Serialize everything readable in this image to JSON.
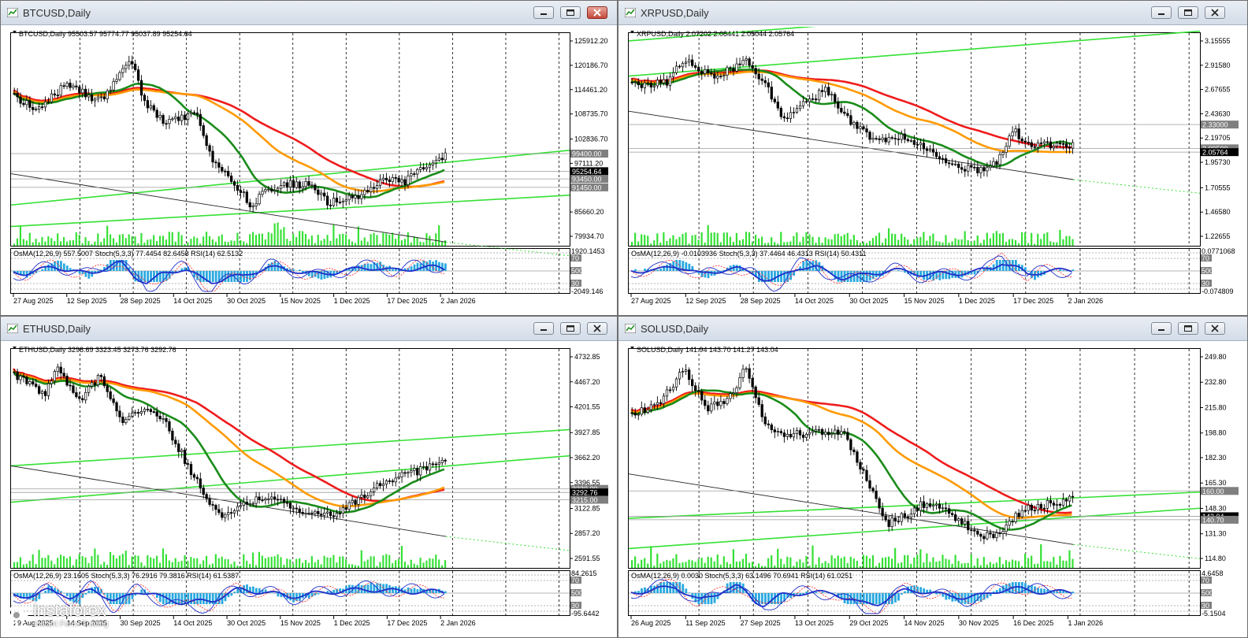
{
  "windows": [
    {
      "id": "btc",
      "title": "BTCUSD,Daily",
      "header": "BTCUSD,Daily  95503.57 95774.77 95037.89 95254.64",
      "price_labels": [
        "125912.20",
        "120186.70",
        "114461.20",
        "108735.70",
        "102836.70",
        "97111.20",
        "91385.70",
        "85660.20",
        "79934.70"
      ],
      "price_range": [
        79934.7,
        125912.2
      ],
      "hlines": [
        {
          "text": "99400.00",
          "value": 99400,
          "color": "#7f7f7f"
        },
        {
          "text": "95254.64",
          "value": 95254.64,
          "color": "#000000"
        },
        {
          "text": "93450.00",
          "value": 93450,
          "color": "#7f7f7f"
        },
        {
          "text": "91450.00",
          "value": 91450,
          "color": "#7f7f7f"
        }
      ],
      "osc_header": "OsMA(12,26,9) 557.5007  Stoch(5,3,3) 77.4454 82.6458  RSI(14) 62.5132",
      "osc_labels": [
        "1920.1453",
        "70",
        "500",
        "30",
        "-2049.146"
      ],
      "dates": [
        "27 Aug 2025",
        "12 Sep 2025",
        "28 Sep 2025",
        "14 Oct 2025",
        "30 Oct 2025",
        "15 Nov 2025",
        "1 Dec 2025",
        "17 Dec 2025",
        "2 Jan 2026"
      ]
    },
    {
      "id": "xrp",
      "title": "XRPUSD,Daily",
      "header": "XRPUSD,Daily  2.07202 2.08441 2.05044 2.05764",
      "price_labels": [
        "3.15555",
        "2.91580",
        "2.67655",
        "2.43630",
        "2.19705",
        "1.95730",
        "1.70555",
        "1.46580",
        "1.22655"
      ],
      "price_range": [
        1.22655,
        3.15555
      ],
      "hlines": [
        {
          "text": "2.33000",
          "value": 2.33,
          "color": "#7f7f7f"
        },
        {
          "text": "2.09500",
          "value": 2.095,
          "color": "#7f7f7f"
        },
        {
          "text": "2.05764",
          "value": 2.05764,
          "color": "#000000"
        }
      ],
      "osc_header": "OsMA(12,26,9) -0.0103936  Stoch(5,3,3) 37.4464 46.4313  RSI(14) 50.4311",
      "osc_labels": [
        "0.0771068",
        "70",
        "500",
        "30",
        "-0.074809"
      ],
      "dates": [
        "27 Aug 2025",
        "12 Sep 2025",
        "28 Sep 2025",
        "14 Oct 2025",
        "30 Oct 2025",
        "15 Nov 2025",
        "1 Dec 2025",
        "17 Dec 2025",
        "2 Jan 2026"
      ]
    },
    {
      "id": "eth",
      "title": "ETHUSD,Daily",
      "header": "ETHUSD,Daily  3298.69 3323.45 3273.76 3292.76",
      "price_labels": [
        "4732.85",
        "4467.20",
        "4201.55",
        "3927.85",
        "3662.20",
        "3396.55",
        "3122.85",
        "2857.20",
        "2591.55"
      ],
      "price_range": [
        2591.55,
        4732.85
      ],
      "hlines": [
        {
          "text": "3330.00",
          "value": 3330,
          "color": "#7f7f7f"
        },
        {
          "text": "3292.76",
          "value": 3292.76,
          "color": "#000000"
        },
        {
          "text": "3215.00",
          "value": 3215,
          "color": "#7f7f7f"
        }
      ],
      "osc_header": "OsMA(12,26,9) 23.1605  Stoch(5,3,3) 76.2916 79.3816  RSI(14) 61.5387",
      "osc_labels": [
        "84.2615",
        "70",
        "500",
        "30",
        "-95.6442"
      ],
      "dates": [
        "29 Aug 2025",
        "14 Sep 2025",
        "30 Sep 2025",
        "14 Oct 2025",
        "30 Oct 2025",
        "15 Nov 2025",
        "1 Dec 2025",
        "17 Dec 2025",
        "2 Jan 2026"
      ]
    },
    {
      "id": "sol",
      "title": "SOLUSD,Daily",
      "header": "SOLUSD,Daily  141.94 143.70 141.27 143.04",
      "price_labels": [
        "249.80",
        "232.80",
        "215.80",
        "198.80",
        "182.30",
        "165.30",
        "148.30",
        "131.30",
        "114.80"
      ],
      "price_range": [
        114.8,
        249.8
      ],
      "hlines": [
        {
          "text": "160.00",
          "value": 160,
          "color": "#7f7f7f"
        },
        {
          "text": "143.04",
          "value": 143.04,
          "color": "#000000"
        },
        {
          "text": "140.70",
          "value": 140.7,
          "color": "#7f7f7f"
        }
      ],
      "osc_header": "OsMA(12,26,9) 0.0030  Stoch(5,3,3) 63.1496 70.6941  RSI(14) 61.0251",
      "osc_labels": [
        "4.6458",
        "70",
        "500",
        "30",
        "-5.1504"
      ],
      "dates": [
        "26 Aug 2025",
        "11 Sep 2025",
        "27 Sep 2025",
        "13 Oct 2025",
        "29 Oct 2025",
        "14 Nov 2025",
        "30 Nov 2025",
        "16 Dec 2025",
        "1 Jan 2026"
      ]
    }
  ],
  "colors": {
    "ma_fast": "#1a8c1a",
    "ma_mid": "#ff9a00",
    "ma_slow": "#ef1c1c",
    "trend": "#35e035",
    "candle": "#000000",
    "osma": "#29a8e0",
    "rsi": "#1f2fc8",
    "stoch": "#ff2020"
  },
  "logo": {
    "name": "instaforex",
    "tagline": "Instant Forex Trading"
  }
}
